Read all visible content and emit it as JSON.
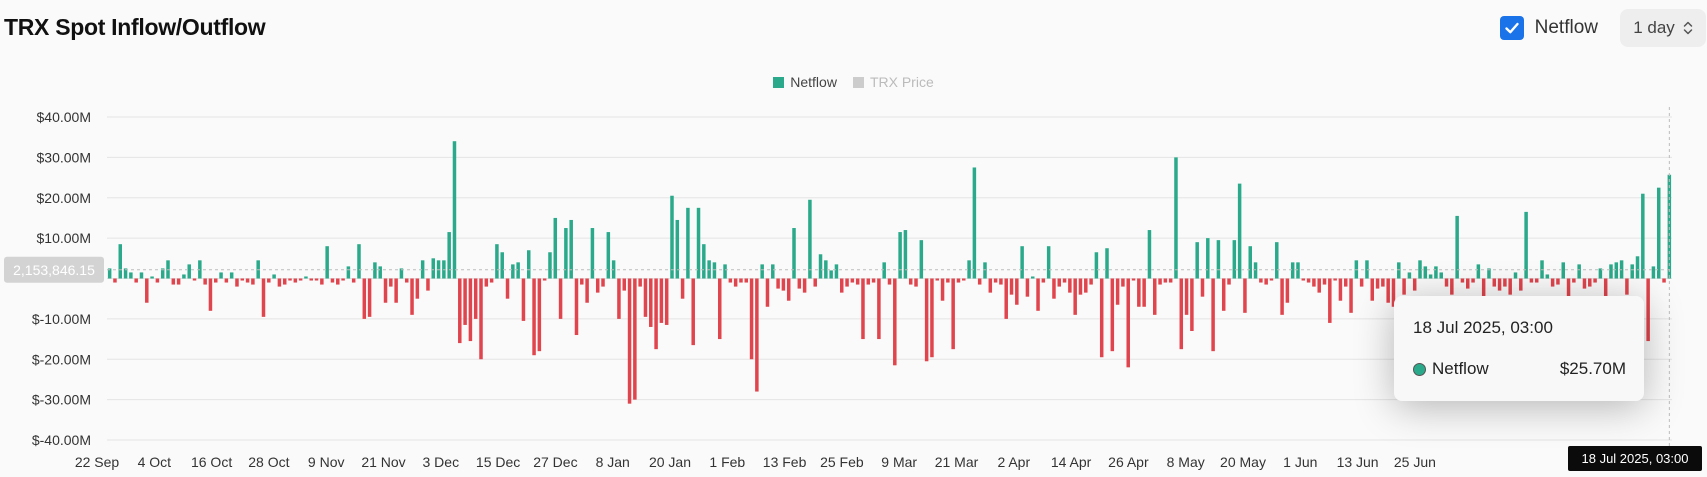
{
  "header": {
    "title": "TRX Spot Inflow/Outflow"
  },
  "controls": {
    "netflow_label": "Netflow",
    "netflow_checked": true,
    "interval": "1 day",
    "interval_icon": "chevron-up-down-icon",
    "check_icon": "checkmark-icon"
  },
  "legend": [
    {
      "label": "Netflow",
      "color": "#2aaa8a",
      "active": true
    },
    {
      "label": "TRX Price",
      "color": "#cccccc",
      "active": false
    }
  ],
  "crosshair": {
    "y_label": "2,153,846.15",
    "x_label": "18 Jul 2025, 03:00"
  },
  "tooltip": {
    "date": "18 Jul 2025, 03:00",
    "series": "Netflow",
    "value": "$25.70M"
  },
  "colors": {
    "positive": "#2aaa8a",
    "negative": "#e0444c"
  },
  "chart_data": {
    "type": "bar",
    "y_ticks": [
      "$40.00M",
      "$30.00M",
      "$20.00M",
      "$10.00M",
      "",
      "$-10.00M",
      "$-20.00M",
      "$-30.00M",
      "$-40.00M"
    ],
    "x_ticks": [
      "22 Sep",
      "4 Oct",
      "16 Oct",
      "28 Oct",
      "9 Nov",
      "21 Nov",
      "3 Dec",
      "15 Dec",
      "27 Dec",
      "8 Jan",
      "20 Jan",
      "1 Feb",
      "13 Feb",
      "25 Feb",
      "9 Mar",
      "21 Mar",
      "2 Apr",
      "14 Apr",
      "26 Apr",
      "8 May",
      "20 May",
      "1 Jun",
      "13 Jun",
      "25 Jun"
    ],
    "ylim": [
      -40,
      40
    ],
    "unit": "$M",
    "series": [
      {
        "name": "Netflow",
        "values": [
          2.5,
          -1,
          8.5,
          2.5,
          1.5,
          -1,
          1.5,
          -6,
          0.5,
          -1,
          2.5,
          4.5,
          -1.5,
          -1.5,
          1,
          3.5,
          -0.5,
          4.5,
          -1.5,
          -8,
          -1,
          1.5,
          -1,
          1.5,
          -2,
          -0.5,
          -1,
          -1.5,
          4.5,
          -9.5,
          -1,
          1,
          -2,
          -1.5,
          -0.5,
          -1,
          -0.5,
          0.5,
          -0.5,
          -0.5,
          -1.5,
          8,
          -1,
          -1.5,
          -0.5,
          3,
          -1,
          8.5,
          -10,
          -9.5,
          4,
          3,
          -6,
          -2,
          -6,
          2.5,
          -1,
          -9,
          -5,
          4.5,
          -3,
          5,
          4.5,
          4.5,
          11.5,
          34,
          -16,
          -11.5,
          -15.5,
          -10,
          -20,
          -2,
          -1,
          8.5,
          6.5,
          -5,
          3.5,
          4,
          -10.5,
          7,
          -19,
          -18,
          -0.5,
          6.5,
          15,
          -10,
          12.5,
          14.5,
          -14,
          -1.5,
          -6,
          12.5,
          -3.5,
          -2,
          11.5,
          4.5,
          -10,
          -3,
          -31,
          -30,
          -2,
          -9.5,
          -12,
          -17.5,
          -11,
          -11.5,
          20.5,
          14.5,
          -5,
          17.5,
          -16.5,
          17.5,
          8.5,
          4.5,
          4,
          -15,
          3.5,
          -1,
          -2,
          -1,
          -1,
          -20,
          -28,
          3.5,
          -7,
          3.5,
          -2.5,
          -3,
          -5.5,
          12.5,
          -2.5,
          -3.5,
          19.5,
          -2,
          6,
          4.5,
          2,
          3.5,
          -3.5,
          -2,
          -1,
          -1.5,
          -15,
          -1.5,
          -1,
          -15,
          4,
          -1.5,
          -21.5,
          11.5,
          12,
          -1.5,
          -2,
          9.5,
          -20.5,
          -19.5,
          -0.5,
          -5.5,
          -1,
          -17.5,
          -1,
          -0.5,
          4.5,
          27.5,
          -1.5,
          4,
          -3.5,
          -1,
          -1.5,
          -10,
          -4,
          -6.5,
          8,
          -4.5,
          0.5,
          -8,
          -1,
          8,
          -5,
          -2,
          -1,
          -3.5,
          -9,
          -4,
          -3.5,
          -1.5,
          6.5,
          -19.5,
          7.5,
          -18,
          -6.5,
          -2,
          -22,
          -0.5,
          -7,
          -7,
          12,
          -9,
          -1.5,
          -1,
          -1,
          30,
          -17.5,
          -9,
          -13,
          9,
          -4.5,
          10,
          -18,
          9.5,
          -8,
          -1.5,
          9.5,
          23.5,
          -8.5,
          8,
          4,
          -1,
          -1.5,
          -0.5,
          9,
          -9,
          -6,
          4,
          4,
          -0.5,
          -1,
          -2,
          -3.5,
          -1.5,
          -11,
          -0.5,
          -5.5,
          -2,
          -8.5,
          4.5,
          -2,
          4.5,
          -5.5,
          -2.5,
          -2,
          -6,
          -7,
          4,
          -4,
          1.5,
          -3,
          4.5,
          3,
          1,
          3,
          1.5,
          -2,
          -4,
          15.5,
          -1,
          -2.5,
          -1,
          3.5,
          -6,
          2.5,
          -2,
          -3,
          -2,
          -4,
          1.5,
          -3,
          16.5,
          -1,
          -1,
          4.5,
          1,
          -2,
          -1.5,
          4,
          -4.5,
          -1,
          3.5,
          -2.5,
          -2,
          -1,
          2.5,
          -8,
          3.5,
          4,
          4.5,
          -4,
          3.5,
          5.5,
          21,
          -15.5,
          3,
          22.5,
          -1,
          25.7
        ]
      }
    ]
  }
}
